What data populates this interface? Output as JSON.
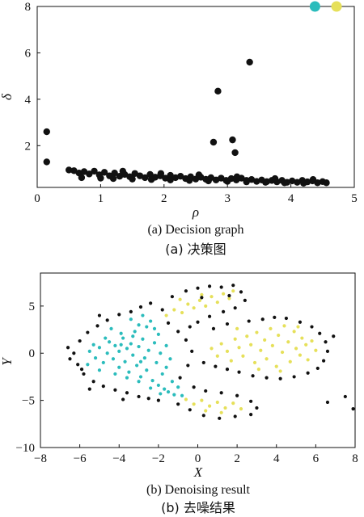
{
  "chart_data": [
    {
      "type": "scatter",
      "title": "",
      "caption_en": "(a) Decision graph",
      "caption_cn": "(a) 决策图",
      "xlabel": "ρ",
      "ylabel": "δ",
      "xlim": [
        0,
        5
      ],
      "ylim": [
        0.2,
        8
      ],
      "xticks": [
        "0",
        "1",
        "2",
        "3",
        "4",
        "5"
      ],
      "yticks": [
        "2",
        "4",
        "6",
        "8"
      ],
      "grid": false,
      "marker_color": "#111111",
      "highlight_colors": [
        "#2bbcbc",
        "#e6e05a"
      ],
      "points": [
        [
          0.15,
          2.6
        ],
        [
          0.15,
          1.3
        ],
        [
          2.78,
          2.15
        ],
        [
          2.85,
          4.35
        ],
        [
          3.08,
          2.25
        ],
        [
          3.12,
          1.7
        ],
        [
          3.35,
          5.6
        ],
        [
          0.5,
          0.95
        ],
        [
          0.58,
          0.92
        ],
        [
          0.66,
          0.82
        ],
        [
          0.74,
          0.88
        ],
        [
          0.82,
          0.78
        ],
        [
          0.9,
          0.9
        ],
        [
          0.98,
          0.74
        ],
        [
          1.06,
          0.85
        ],
        [
          1.14,
          0.7
        ],
        [
          1.22,
          0.82
        ],
        [
          1.3,
          0.68
        ],
        [
          1.38,
          0.76
        ],
        [
          1.46,
          0.66
        ],
        [
          1.54,
          0.8
        ],
        [
          1.62,
          0.7
        ],
        [
          1.7,
          0.62
        ],
        [
          1.78,
          0.76
        ],
        [
          1.86,
          0.64
        ],
        [
          1.94,
          0.7
        ],
        [
          2.02,
          0.6
        ],
        [
          2.1,
          0.72
        ],
        [
          2.18,
          0.62
        ],
        [
          2.26,
          0.68
        ],
        [
          2.34,
          0.58
        ],
        [
          2.42,
          0.66
        ],
        [
          2.5,
          0.56
        ],
        [
          2.58,
          0.64
        ],
        [
          2.66,
          0.55
        ],
        [
          2.74,
          0.62
        ],
        [
          2.82,
          0.52
        ],
        [
          2.9,
          0.6
        ],
        [
          2.98,
          0.5
        ],
        [
          3.06,
          0.58
        ],
        [
          3.14,
          0.52
        ],
        [
          3.22,
          0.6
        ],
        [
          3.3,
          0.5
        ],
        [
          3.38,
          0.54
        ],
        [
          3.46,
          0.46
        ],
        [
          3.54,
          0.52
        ],
        [
          3.62,
          0.45
        ],
        [
          3.7,
          0.5
        ],
        [
          3.78,
          0.44
        ],
        [
          3.86,
          0.5
        ],
        [
          3.94,
          0.42
        ],
        [
          4.02,
          0.48
        ],
        [
          4.1,
          0.42
        ],
        [
          4.18,
          0.5
        ],
        [
          4.26,
          0.44
        ],
        [
          4.34,
          0.48
        ],
        [
          4.42,
          0.4
        ],
        [
          4.5,
          0.45
        ],
        [
          4.56,
          0.4
        ],
        [
          1.0,
          0.6
        ],
        [
          1.2,
          0.58
        ],
        [
          1.5,
          0.56
        ],
        [
          1.8,
          0.54
        ],
        [
          2.1,
          0.52
        ],
        [
          2.4,
          0.5
        ],
        [
          2.7,
          0.48
        ],
        [
          3.0,
          0.46
        ],
        [
          3.3,
          0.44
        ],
        [
          3.6,
          0.42
        ],
        [
          3.9,
          0.4
        ],
        [
          4.2,
          0.38
        ],
        [
          0.7,
          0.62
        ],
        [
          1.35,
          0.9
        ],
        [
          1.95,
          0.8
        ],
        [
          2.55,
          0.74
        ],
        [
          3.15,
          0.66
        ],
        [
          3.75,
          0.58
        ],
        [
          4.35,
          0.54
        ]
      ],
      "highlight_points": [
        [
          4.38,
          8.0
        ],
        [
          4.72,
          8.0
        ]
      ]
    },
    {
      "type": "scatter",
      "title": "",
      "caption_en": "(b) Denoising result",
      "caption_cn": "(b) 去噪结果",
      "xlabel": "X",
      "ylabel": "Y",
      "xlim": [
        -8,
        8
      ],
      "ylim": [
        -10,
        8.5
      ],
      "xticks": [
        "−8",
        "−6",
        "−4",
        "−2",
        "0",
        "2",
        "4",
        "6",
        "8"
      ],
      "yticks": [
        "−10",
        "−5",
        "0",
        "5"
      ],
      "grid": false,
      "series": [
        {
          "color": "#2bbcbc",
          "points": [
            [
              -5.5,
              0.2
            ],
            [
              -5.2,
              -0.5
            ],
            [
              -5.0,
              0.6
            ],
            [
              -4.8,
              -1.0
            ],
            [
              -4.6,
              0.0
            ],
            [
              -4.5,
              1.2
            ],
            [
              -4.3,
              -0.6
            ],
            [
              -4.2,
              0.8
            ],
            [
              -4.0,
              -1.5
            ],
            [
              -4.0,
              0.2
            ],
            [
              -3.8,
              1.6
            ],
            [
              -3.7,
              -0.9
            ],
            [
              -3.6,
              0.5
            ],
            [
              -3.5,
              -2.0
            ],
            [
              -3.4,
              1.0
            ],
            [
              -3.3,
              -0.2
            ],
            [
              -3.2,
              2.3
            ],
            [
              -3.1,
              -1.3
            ],
            [
              -3.0,
              0.7
            ],
            [
              -3.0,
              3.0
            ],
            [
              -2.9,
              -2.5
            ],
            [
              -2.8,
              1.5
            ],
            [
              -2.7,
              -0.5
            ],
            [
              -2.6,
              2.8
            ],
            [
              -2.6,
              -1.8
            ],
            [
              -2.5,
              0.3
            ],
            [
              -2.4,
              3.4
            ],
            [
              -2.3,
              -2.9
            ],
            [
              -2.2,
              1.1
            ],
            [
              -2.1,
              -1.0
            ],
            [
              -2.0,
              2.0
            ],
            [
              -2.0,
              -3.4
            ],
            [
              -1.9,
              0.0
            ],
            [
              -1.8,
              -2.2
            ],
            [
              -1.7,
              -3.8
            ],
            [
              -1.6,
              -1.5
            ],
            [
              -1.5,
              -4.1
            ],
            [
              -1.3,
              -3.0
            ],
            [
              -1.2,
              -4.4
            ],
            [
              -1.0,
              -3.6
            ],
            [
              -0.8,
              -4.5
            ],
            [
              -3.9,
              2.1
            ],
            [
              -4.4,
              2.6
            ],
            [
              -3.4,
              3.6
            ],
            [
              -2.8,
              4.0
            ],
            [
              -5.6,
              -1.2
            ],
            [
              -5.0,
              -1.8
            ],
            [
              -4.2,
              -2.2
            ],
            [
              -3.6,
              -2.6
            ],
            [
              -3.0,
              -3.0
            ],
            [
              -2.4,
              -3.7
            ],
            [
              -1.9,
              -4.3
            ],
            [
              -2.2,
              2.6
            ],
            [
              -1.6,
              0.8
            ],
            [
              -1.4,
              -0.6
            ],
            [
              -3.9,
              0.9
            ],
            [
              -4.7,
              1.6
            ],
            [
              -5.3,
              0.9
            ],
            [
              -2.9,
              -0.9
            ],
            [
              -3.3,
              1.8
            ]
          ]
        },
        {
          "color": "#e6e05a",
          "points": [
            [
              -1.6,
              4.0
            ],
            [
              -1.2,
              4.6
            ],
            [
              -0.8,
              4.3
            ],
            [
              -0.5,
              5.2
            ],
            [
              -0.2,
              4.8
            ],
            [
              0.1,
              5.6
            ],
            [
              0.4,
              5.0
            ],
            [
              0.7,
              6.0
            ],
            [
              1.0,
              5.4
            ],
            [
              1.3,
              6.3
            ],
            [
              1.6,
              5.8
            ],
            [
              -0.9,
              5.7
            ],
            [
              0.2,
              6.2
            ],
            [
              1.8,
              6.6
            ],
            [
              0.7,
              0.5
            ],
            [
              1.0,
              -0.3
            ],
            [
              1.2,
              1.0
            ],
            [
              1.5,
              0.2
            ],
            [
              1.7,
              -0.8
            ],
            [
              1.9,
              1.5
            ],
            [
              2.1,
              0.6
            ],
            [
              2.3,
              -0.3
            ],
            [
              2.5,
              1.8
            ],
            [
              2.7,
              0.9
            ],
            [
              2.9,
              -1.0
            ],
            [
              3.0,
              2.2
            ],
            [
              3.2,
              0.3
            ],
            [
              3.4,
              1.4
            ],
            [
              3.5,
              -0.6
            ],
            [
              3.7,
              2.6
            ],
            [
              3.8,
              0.8
            ],
            [
              4.0,
              -1.4
            ],
            [
              4.1,
              1.9
            ],
            [
              4.3,
              0.1
            ],
            [
              4.4,
              2.9
            ],
            [
              4.6,
              1.2
            ],
            [
              4.7,
              -0.9
            ],
            [
              4.9,
              2.3
            ],
            [
              5.0,
              0.5
            ],
            [
              5.2,
              -0.2
            ],
            [
              5.3,
              1.6
            ],
            [
              5.5,
              0.9
            ],
            [
              5.6,
              -0.7
            ],
            [
              5.8,
              1.3
            ],
            [
              6.0,
              0.3
            ],
            [
              2.0,
              2.6
            ],
            [
              3.1,
              -1.7
            ],
            [
              4.2,
              -1.9
            ],
            [
              5.1,
              2.8
            ],
            [
              -0.6,
              -4.9
            ],
            [
              -0.2,
              -5.4
            ],
            [
              0.2,
              -5.0
            ],
            [
              0.6,
              -5.6
            ],
            [
              1.0,
              -5.2
            ],
            [
              1.4,
              -5.8
            ],
            [
              1.8,
              -5.3
            ],
            [
              2.2,
              -5.9
            ],
            [
              0.4,
              -6.1
            ],
            [
              1.2,
              -6.3
            ]
          ]
        },
        {
          "color": "#111111",
          "points": [
            [
              -6.3,
              0.0
            ],
            [
              -6.1,
              -1.2
            ],
            [
              -6.0,
              1.3
            ],
            [
              -5.8,
              -2.2
            ],
            [
              -5.6,
              2.2
            ],
            [
              -5.3,
              -3.0
            ],
            [
              -5.1,
              2.9
            ],
            [
              -4.8,
              -3.5
            ],
            [
              -4.6,
              3.5
            ],
            [
              -4.2,
              -3.9
            ],
            [
              -4.0,
              4.1
            ],
            [
              -3.6,
              -4.2
            ],
            [
              -3.4,
              4.4
            ],
            [
              -3.0,
              -4.6
            ],
            [
              -2.9,
              4.9
            ],
            [
              -2.5,
              -4.8
            ],
            [
              -2.4,
              5.3
            ],
            [
              -2.0,
              -5.0
            ],
            [
              -1.8,
              4.6
            ],
            [
              -1.5,
              3.2
            ],
            [
              -1.0,
              2.3
            ],
            [
              -0.6,
              1.4
            ],
            [
              -0.3,
              0.2
            ],
            [
              -0.5,
              -1.3
            ],
            [
              -0.9,
              -2.6
            ],
            [
              -6.5,
              -0.6
            ],
            [
              -6.6,
              0.6
            ],
            [
              -5.9,
              -1.7
            ],
            [
              -1.3,
              6.0
            ],
            [
              -0.6,
              6.6
            ],
            [
              0.0,
              6.9
            ],
            [
              0.6,
              7.1
            ],
            [
              1.2,
              7.0
            ],
            [
              1.8,
              7.2
            ],
            [
              2.2,
              6.5
            ],
            [
              2.4,
              5.6
            ],
            [
              1.9,
              4.8
            ],
            [
              1.3,
              4.4
            ],
            [
              0.6,
              3.9
            ],
            [
              0.0,
              3.3
            ],
            [
              -0.4,
              2.8
            ],
            [
              0.8,
              2.6
            ],
            [
              1.5,
              3.1
            ],
            [
              2.6,
              3.4
            ],
            [
              3.3,
              3.6
            ],
            [
              3.9,
              3.8
            ],
            [
              4.5,
              3.7
            ],
            [
              5.2,
              3.3
            ],
            [
              5.8,
              2.8
            ],
            [
              6.2,
              2.1
            ],
            [
              6.5,
              1.2
            ],
            [
              6.6,
              0.2
            ],
            [
              6.4,
              -0.8
            ],
            [
              6.1,
              -1.6
            ],
            [
              5.6,
              -2.1
            ],
            [
              4.9,
              -2.5
            ],
            [
              4.2,
              -2.7
            ],
            [
              3.5,
              -2.6
            ],
            [
              2.8,
              -2.4
            ],
            [
              2.1,
              -2.0
            ],
            [
              1.5,
              -1.7
            ],
            [
              0.9,
              -1.4
            ],
            [
              0.3,
              -1.0
            ],
            [
              -0.2,
              -3.6
            ],
            [
              0.4,
              -4.0
            ],
            [
              1.2,
              -4.2
            ],
            [
              2.0,
              -4.5
            ],
            [
              2.7,
              -5.1
            ],
            [
              3.0,
              -5.8
            ],
            [
              2.7,
              -6.5
            ],
            [
              1.9,
              -6.7
            ],
            [
              1.1,
              -6.9
            ],
            [
              0.3,
              -6.6
            ],
            [
              -0.4,
              -6.0
            ],
            [
              -1.0,
              -5.4
            ],
            [
              6.6,
              -5.2
            ],
            [
              7.5,
              -4.6
            ],
            [
              7.9,
              -5.9
            ],
            [
              -5.0,
              4.0
            ],
            [
              -5.5,
              -3.8
            ],
            [
              6.9,
              1.8
            ],
            [
              0.2,
              5.9
            ],
            [
              1.6,
              6.1
            ],
            [
              -3.8,
              -4.9
            ]
          ]
        }
      ]
    }
  ]
}
